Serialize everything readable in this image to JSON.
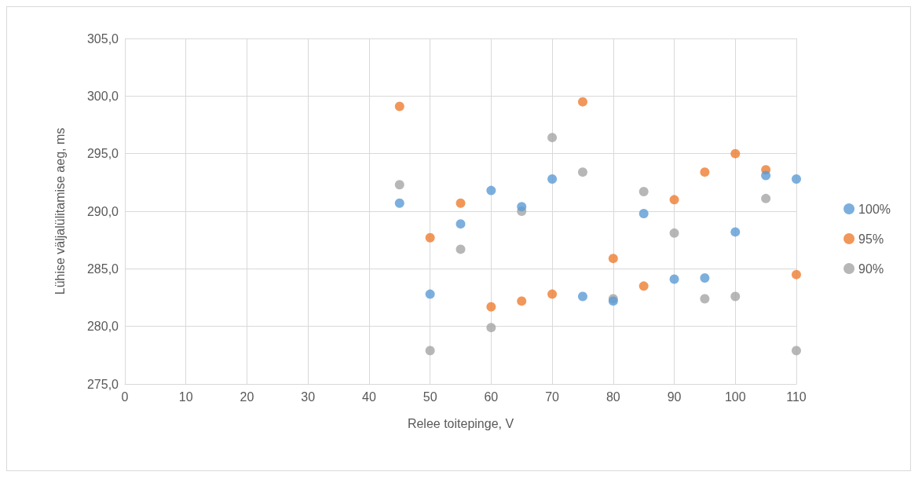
{
  "chart_data": {
    "type": "scatter",
    "xlabel": "Relee toitepinge, V",
    "ylabel": "Lühise väljalülitamise aeg, ms",
    "x": [
      45,
      50,
      55,
      60,
      65,
      70,
      75,
      80,
      85,
      90,
      95,
      100,
      105,
      110
    ],
    "series": [
      {
        "name": "100%",
        "color": "#5b9bd5",
        "values": [
          290.7,
          282.8,
          288.9,
          291.8,
          290.4,
          292.8,
          282.6,
          282.2,
          289.8,
          284.1,
          284.2,
          288.2,
          293.1,
          292.8
        ]
      },
      {
        "name": "95%",
        "color": "#ed7d31",
        "values": [
          299.1,
          287.7,
          290.7,
          281.7,
          282.2,
          282.8,
          299.5,
          285.9,
          283.5,
          291.0,
          293.4,
          295.0,
          293.6,
          284.5
        ]
      },
      {
        "name": "90%",
        "color": "#a5a5a5",
        "values": [
          292.3,
          277.9,
          286.7,
          279.9,
          290.0,
          296.4,
          293.4,
          282.4,
          291.7,
          288.1,
          282.4,
          282.6,
          291.1,
          277.9
        ]
      }
    ],
    "xlim": [
      0,
      110
    ],
    "xticks": [
      0,
      10,
      20,
      30,
      40,
      50,
      60,
      70,
      80,
      90,
      100,
      110
    ],
    "ylim": [
      275,
      305
    ],
    "yticks": [
      {
        "value": 275,
        "label": "275,0"
      },
      {
        "value": 280,
        "label": "280,0"
      },
      {
        "value": 285,
        "label": "285,0"
      },
      {
        "value": 290,
        "label": "290,0"
      },
      {
        "value": 295,
        "label": "295,0"
      },
      {
        "value": 300,
        "label": "300,0"
      },
      {
        "value": 305,
        "label": "305,0"
      }
    ],
    "grid": true,
    "legend": "right",
    "marker": "circle"
  }
}
